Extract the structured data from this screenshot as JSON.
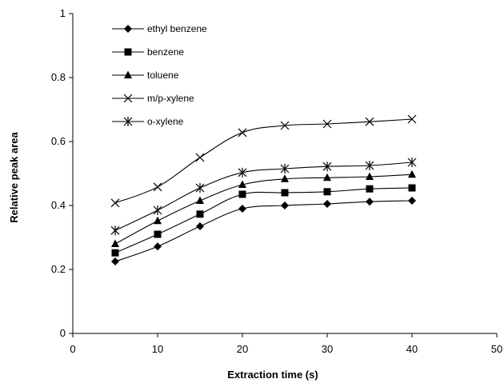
{
  "chart_data": {
    "type": "line",
    "title": "",
    "xlabel": "Extraction time (s)",
    "ylabel": "Relative peak area",
    "xlim": [
      0,
      50
    ],
    "ylim": [
      0,
      1
    ],
    "xticks": [
      "0",
      "10",
      "20",
      "30",
      "40",
      "50"
    ],
    "yticks": [
      "0",
      "0.2",
      "0.4",
      "0.6",
      "0.8",
      "1"
    ],
    "grid": false,
    "legend_position": "top-left",
    "x": [
      5,
      10,
      15,
      20,
      25,
      30,
      35,
      40
    ],
    "series": [
      {
        "name": "ethyl benzene",
        "marker": "diamond",
        "color": "#000000",
        "values": [
          0.225,
          0.272,
          0.335,
          0.39,
          0.4,
          0.405,
          0.412,
          0.415
        ]
      },
      {
        "name": "benzene",
        "marker": "square",
        "color": "#000000",
        "values": [
          0.252,
          0.31,
          0.373,
          0.435,
          0.44,
          0.443,
          0.452,
          0.455
        ]
      },
      {
        "name": "toluene",
        "marker": "triangle",
        "color": "#000000",
        "values": [
          0.28,
          0.352,
          0.415,
          0.465,
          0.483,
          0.487,
          0.49,
          0.497
        ]
      },
      {
        "name": "m/p-xylene",
        "marker": "x",
        "color": "#000000",
        "values": [
          0.408,
          0.458,
          0.55,
          0.628,
          0.65,
          0.655,
          0.662,
          0.67
        ]
      },
      {
        "name": "o-xylene",
        "marker": "star",
        "color": "#000000",
        "values": [
          0.322,
          0.385,
          0.455,
          0.503,
          0.515,
          0.522,
          0.525,
          0.535
        ]
      }
    ]
  }
}
